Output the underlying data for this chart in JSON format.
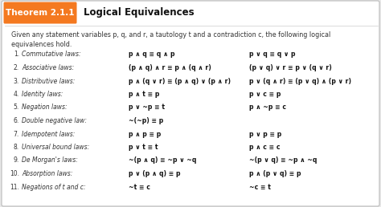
{
  "theorem_label": "Theorem 2.1.1",
  "theorem_title": "Logical Equivalences",
  "header_bg": "#F47920",
  "header_text_color": "#FFFFFF",
  "title_text_color": "#111111",
  "box_bg": "#FFFFFF",
  "intro_line1": "Given any statement variables p, q, and r, a tautology t and a contradiction c, the following logical",
  "intro_line2": "equivalences hold.",
  "rows": [
    {
      "num": "1.",
      "law": "Commutative laws:",
      "left": "p ∧ q ≡ q ∧ p",
      "right": "p ∨ q ≡ q ∨ p"
    },
    {
      "num": "2.",
      "law": "Associative laws:",
      "left": "(p ∧ q) ∧ r ≡ p ∧ (q ∧ r)",
      "right": "(p ∨ q) ∨ r ≡ p ∨ (q ∨ r)"
    },
    {
      "num": "3.",
      "law": "Distributive laws:",
      "left": "p ∧ (q ∨ r) ≡ (p ∧ q) ∨ (p ∧ r)",
      "right": "p ∨ (q ∧ r) ≡ (p ∨ q) ∧ (p ∨ r)"
    },
    {
      "num": "4.",
      "law": "Identity laws:",
      "left": "p ∧ t ≡ p",
      "right": "p ∨ c ≡ p"
    },
    {
      "num": "5.",
      "law": "Negation laws:",
      "left": "p ∨ ~p ≡ t",
      "right": "p ∧ ~p ≡ c"
    },
    {
      "num": "6.",
      "law": "Double negative law:",
      "left": "~(~p) ≡ p",
      "right": ""
    },
    {
      "num": "7.",
      "law": "Idempotent laws:",
      "left": "p ∧ p ≡ p",
      "right": "p ∨ p ≡ p"
    },
    {
      "num": "8.",
      "law": "Universal bound laws:",
      "left": "p ∨ t ≡ t",
      "right": "p ∧ c ≡ c"
    },
    {
      "num": "9.",
      "law": "De Morgan's laws:",
      "left": "~(p ∧ q) ≡ ~p ∨ ~q",
      "right": "~(p ∨ q) ≡ ~p ∧ ~q"
    },
    {
      "num": "10.",
      "law": "Absorption laws:",
      "left": "p ∨ (p ∧ q) ≡ p",
      "right": "p ∧ (p ∨ q) ≡ p"
    },
    {
      "num": "11.",
      "law": "Negations of t and c:",
      "left": "~t ≡ c",
      "right": "~c ≡ t"
    }
  ],
  "fs_header_label": 7.5,
  "fs_header_title": 8.5,
  "fs_intro": 5.8,
  "fs_law": 5.5,
  "fs_eq": 5.6
}
